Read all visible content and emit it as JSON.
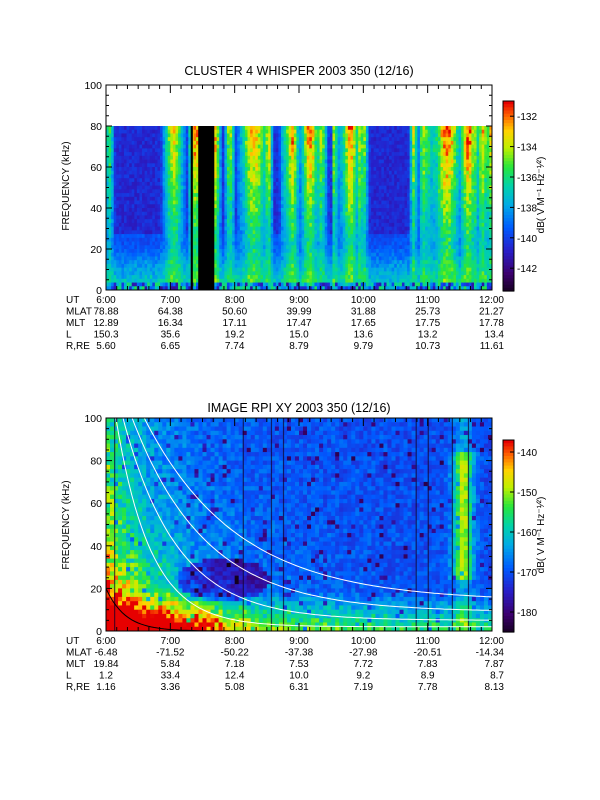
{
  "chart_data": [
    {
      "type": "heatmap",
      "title": "CLUSTER 4 WHISPER 2003 350 (12/16)",
      "ylabel": "FREQUENCY (kHz)",
      "xlim": [
        "6:00",
        "12:00"
      ],
      "ylim": [
        0,
        100
      ],
      "y_ticks": [
        "0",
        "20",
        "40",
        "60",
        "80",
        "100"
      ],
      "data_frequency_max": 80,
      "colorbar": {
        "label": "dB( V M⁻¹ Hz⁻¹⁄²)",
        "range": [
          -143.5,
          -131
        ],
        "ticks": [
          "-132",
          "-134",
          "-136",
          "-138",
          "-140",
          "-142"
        ],
        "tick_values": [
          -132,
          -134,
          -136,
          -138,
          -140,
          -142
        ]
      },
      "ephemeris": {
        "labels": [
          "UT",
          "MLAT",
          "MLT",
          "L",
          "R,RE"
        ],
        "columns": [
          [
            "6:00",
            "78.88",
            "12.89",
            "150.3",
            "5.60"
          ],
          [
            "7:00",
            "64.38",
            "16.34",
            "35.6",
            "6.65"
          ],
          [
            "8:00",
            "50.60",
            "17.11",
            "19.2",
            "7.74"
          ],
          [
            "9:00",
            "39.99",
            "17.47",
            "15.0",
            "8.79"
          ],
          [
            "10:00",
            "31.88",
            "17.65",
            "13.6",
            "9.79"
          ],
          [
            "11:00",
            "25.73",
            "17.75",
            "13.2",
            "10.73"
          ],
          [
            "12:00",
            "21.27",
            "17.78",
            "13.4",
            "11.61"
          ]
        ]
      },
      "data_gaps_ut": [
        [
          "7:19",
          "7:21"
        ],
        [
          "7:26",
          "7:41"
        ]
      ]
    },
    {
      "type": "heatmap",
      "title": "IMAGE RPI XY 2003 350 (12/16)",
      "ylabel": "FREQUENCY (kHz)",
      "xlim": [
        "6:00",
        "12:00"
      ],
      "ylim": [
        0,
        100
      ],
      "y_ticks": [
        "0",
        "20",
        "40",
        "60",
        "80",
        "100"
      ],
      "colorbar": {
        "label": "dB( V M⁻¹ Hz⁻¹⁄²)",
        "range": [
          -185,
          -137
        ],
        "ticks": [
          "-140",
          "-150",
          "-160",
          "-170",
          "-180"
        ],
        "tick_values": [
          -140,
          -150,
          -160,
          -170,
          -180
        ]
      },
      "ephemeris": {
        "labels": [
          "UT",
          "MLAT",
          "MLT",
          "L",
          "R,RE"
        ],
        "columns": [
          [
            "6:00",
            "-6.48",
            "19.84",
            "1.2",
            "1.16"
          ],
          [
            "7:00",
            "-71.52",
            "5.84",
            "33.4",
            "3.36"
          ],
          [
            "8:00",
            "-50.22",
            "7.18",
            "12.4",
            "5.08"
          ],
          [
            "9:00",
            "-37.38",
            "7.53",
            "10.0",
            "6.31"
          ],
          [
            "10:00",
            "-27.98",
            "7.72",
            "9.2",
            "7.19"
          ],
          [
            "11:00",
            "-20.51",
            "7.83",
            "8.9",
            "7.78"
          ],
          [
            "12:00",
            "-14.34",
            "7.87",
            "8.7",
            "8.13"
          ]
        ]
      },
      "overlay_curves": [
        "white",
        "white",
        "white",
        "white",
        "black"
      ]
    }
  ]
}
